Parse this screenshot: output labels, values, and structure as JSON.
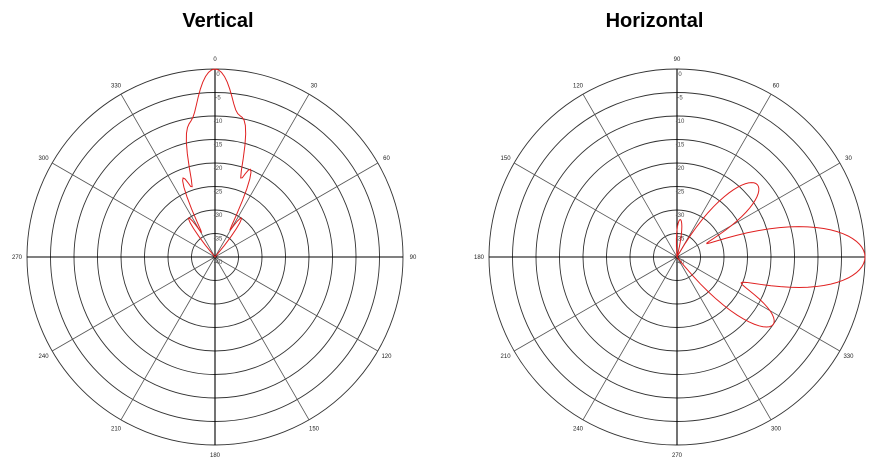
{
  "chart_data": [
    {
      "type": "polar",
      "title": "Vertical",
      "angle_labels": [
        "0",
        "30",
        "60",
        "90",
        "120",
        "150",
        "180",
        "210",
        "240",
        "270",
        "300",
        "330"
      ],
      "radial_labels": [
        "0",
        "-5",
        "-10",
        "-15",
        "-20",
        "-25",
        "-30",
        "-35",
        "-40"
      ],
      "rlim": [
        -40,
        0
      ],
      "grid": true,
      "series": [
        {
          "color": "#e02020",
          "lobes": [
            {
              "angle": 0,
              "peak": 0,
              "beamwidth": 10
            },
            {
              "angle": 12,
              "peak": -12,
              "beamwidth": 6
            },
            {
              "angle": -12,
              "peak": -14,
              "beamwidth": 6
            },
            {
              "angle": 22,
              "peak": -20,
              "beamwidth": 6
            },
            {
              "angle": -22,
              "peak": -22,
              "beamwidth": 6
            },
            {
              "angle": 34,
              "peak": -30,
              "beamwidth": 8
            },
            {
              "angle": -34,
              "peak": -30,
              "beamwidth": 8
            }
          ]
        }
      ]
    },
    {
      "type": "polar",
      "title": "Horizontal",
      "angle_labels": [
        "90",
        "60",
        "30",
        "0",
        "330",
        "300",
        "270",
        "240",
        "210",
        "180",
        "150",
        "120"
      ],
      "radial_labels": [
        "0",
        "-5",
        "-10",
        "-15",
        "-20",
        "-25",
        "-30",
        "-35",
        "-40"
      ],
      "rlim": [
        -40,
        0
      ],
      "grid": true,
      "series": [
        {
          "color": "#e02020",
          "lobes": [
            {
              "angle": 0,
              "peak": 0,
              "beamwidth": 16
            },
            {
              "angle": 35,
              "peak": -15,
              "beamwidth": 14
            },
            {
              "angle": -42,
              "peak": -17,
              "beamwidth": 16
            },
            {
              "angle": -85,
              "peak": -32,
              "beamwidth": 14
            }
          ]
        }
      ]
    }
  ]
}
